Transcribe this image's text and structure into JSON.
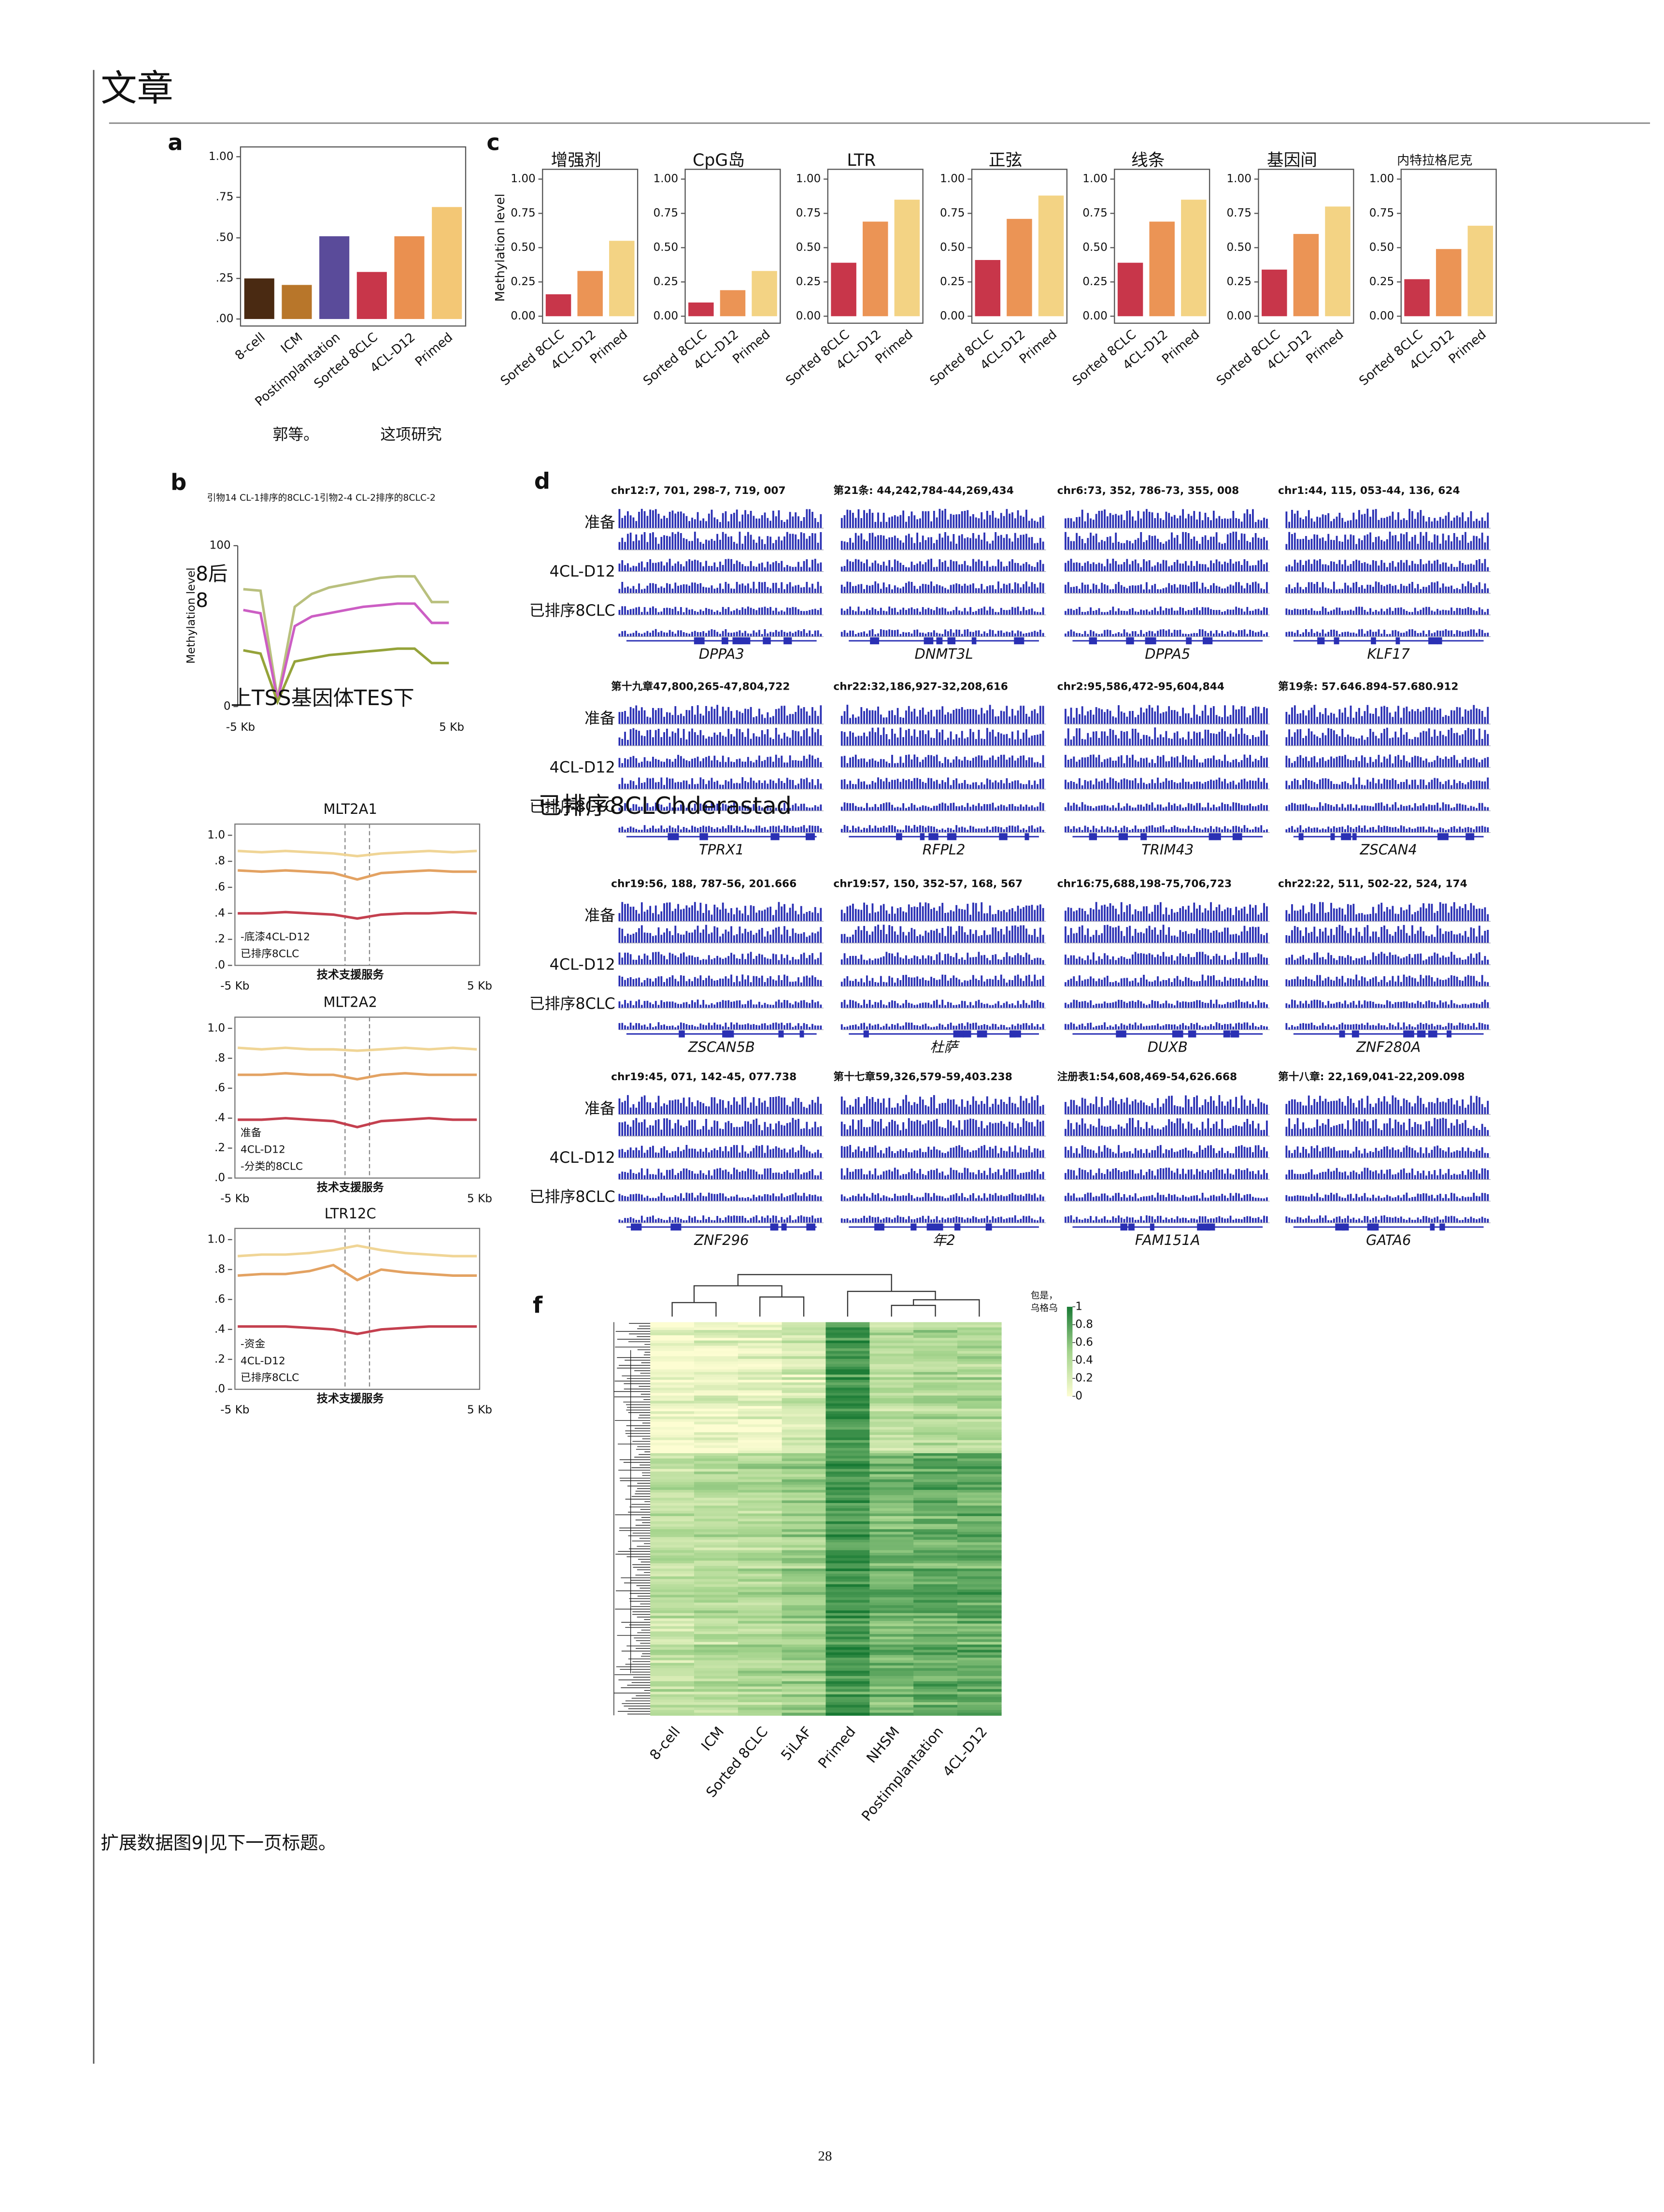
{
  "header": {
    "title": "文章"
  },
  "caption": "扩展数据图9|见下一页标题。",
  "page_number": "28",
  "chart_data": [
    {
      "type": "bar",
      "panel": "a",
      "categories": [
        "8-cell",
        "ICM",
        "Postimplantation",
        "Sorted 8CLC",
        "4CL-D12",
        "Primed"
      ],
      "values": [
        0.25,
        0.21,
        0.51,
        0.29,
        0.51,
        0.69
      ],
      "colors": [
        "#4a2a12",
        "#b8762a",
        "#5a4b9a",
        "#c8364a",
        "#ea9050",
        "#f3c775"
      ],
      "ylim": [
        0,
        1
      ],
      "yticks": [
        {
          "value": 0,
          "label": ".00"
        },
        {
          "value": 0.25,
          "label": ".25"
        },
        {
          "value": 0.5,
          "label": ".50"
        },
        {
          "value": 0.75,
          "label": ".75"
        },
        {
          "value": 1,
          "label": "1.00"
        }
      ],
      "notes": [
        "郭等。",
        "这项研究"
      ]
    },
    {
      "type": "bar",
      "panel": "c",
      "title": "增强剂",
      "ylabel": "Methylation level",
      "categories": [
        "Sorted 8CLC",
        "4CL-D12",
        "Primed"
      ],
      "values": [
        0.16,
        0.33,
        0.55
      ],
      "colors": [
        "#c8364a",
        "#eb9455",
        "#f3d384"
      ],
      "ylim": [
        0,
        1
      ],
      "yticks": [
        {
          "value": 0,
          "label": "0.00"
        },
        {
          "value": 0.25,
          "label": "0.25"
        },
        {
          "value": 0.5,
          "label": "0.50"
        },
        {
          "value": 0.75,
          "label": "0.75"
        },
        {
          "value": 1,
          "label": "1.00"
        }
      ]
    },
    {
      "type": "bar",
      "title": "CpG岛",
      "categories": [
        "Sorted 8CLC",
        "4CL-D12",
        "Primed"
      ],
      "values": [
        0.1,
        0.19,
        0.33
      ],
      "colors": [
        "#c8364a",
        "#eb9455",
        "#f3d384"
      ],
      "ylim": [
        0,
        1
      ],
      "yticks": [
        {
          "value": 0,
          "label": "0.00"
        },
        {
          "value": 0.25,
          "label": "0.25"
        },
        {
          "value": 0.5,
          "label": "0.50"
        },
        {
          "value": 0.75,
          "label": "0.75"
        },
        {
          "value": 1,
          "label": "1.00"
        }
      ]
    },
    {
      "type": "bar",
      "title": "LTR",
      "categories": [
        "Sorted 8CLC",
        "4CL-D12",
        "Primed"
      ],
      "values": [
        0.39,
        0.69,
        0.85
      ],
      "colors": [
        "#c8364a",
        "#eb9455",
        "#f3d384"
      ],
      "ylim": [
        0,
        1
      ],
      "yticks": [
        {
          "value": 0,
          "label": "0.00"
        },
        {
          "value": 0.25,
          "label": "0.25"
        },
        {
          "value": 0.5,
          "label": "0.50"
        },
        {
          "value": 0.75,
          "label": "0.75"
        },
        {
          "value": 1,
          "label": "1.00"
        }
      ]
    },
    {
      "type": "bar",
      "title": "正弦",
      "categories": [
        "Sorted 8CLC",
        "4CL-D12",
        "Primed"
      ],
      "values": [
        0.41,
        0.71,
        0.88
      ],
      "colors": [
        "#c8364a",
        "#eb9455",
        "#f3d384"
      ],
      "ylim": [
        0,
        1
      ],
      "yticks": [
        {
          "value": 0,
          "label": "0.00"
        },
        {
          "value": 0.25,
          "label": "0.25"
        },
        {
          "value": 0.5,
          "label": "0.50"
        },
        {
          "value": 0.75,
          "label": "0.75"
        },
        {
          "value": 1,
          "label": "1.00"
        }
      ]
    },
    {
      "type": "bar",
      "title": "线条",
      "categories": [
        "Sorted 8CLC",
        "4CL-D12",
        "Primed"
      ],
      "values": [
        0.39,
        0.69,
        0.85
      ],
      "colors": [
        "#c8364a",
        "#eb9455",
        "#f3d384"
      ],
      "ylim": [
        0,
        1
      ],
      "yticks": [
        {
          "value": 0,
          "label": "0.00"
        },
        {
          "value": 0.25,
          "label": "0.25"
        },
        {
          "value": 0.5,
          "label": "0.50"
        },
        {
          "value": 0.75,
          "label": "0.75"
        },
        {
          "value": 1,
          "label": "1.00"
        }
      ]
    },
    {
      "type": "bar",
      "title": "基因间",
      "categories": [
        "Sorted 8CLC",
        "4CL-D12",
        "Primed"
      ],
      "values": [
        0.34,
        0.6,
        0.8
      ],
      "colors": [
        "#c8364a",
        "#eb9455",
        "#f3d384"
      ],
      "ylim": [
        0,
        1
      ],
      "yticks": [
        {
          "value": 0,
          "label": "0.00"
        },
        {
          "value": 0.25,
          "label": "0.25"
        },
        {
          "value": 0.5,
          "label": "0.50"
        },
        {
          "value": 0.75,
          "label": "0.75"
        },
        {
          "value": 1,
          "label": "1.00"
        }
      ]
    },
    {
      "type": "bar",
      "title": "内特拉格尼克",
      "categories": [
        "Sorted 8CLC",
        "4CL-D12",
        "Primed"
      ],
      "values": [
        0.27,
        0.49,
        0.66
      ],
      "colors": [
        "#c8364a",
        "#eb9455",
        "#f3d384"
      ],
      "ylim": [
        0,
        1
      ],
      "yticks": [
        {
          "value": 0,
          "label": "0.00"
        },
        {
          "value": 0.25,
          "label": "0.25"
        },
        {
          "value": 0.5,
          "label": "0.50"
        },
        {
          "value": 0.75,
          "label": "0.75"
        },
        {
          "value": 1,
          "label": "1.00"
        }
      ]
    },
    {
      "type": "line",
      "panel": "b",
      "title": "引物14 CL-1排序的8CLC-1引物2-4 CL-2排序的8CLC-2",
      "ylabel": "Methylation level",
      "ylim": [
        0,
        100
      ],
      "yticks": [
        0,
        100
      ],
      "xtick_labels": [
        "-5 Kb",
        "5 Kb"
      ],
      "annotations": [
        "8后",
        "8",
        "上TSS基因体TES下"
      ],
      "series": [
        {
          "color": "#b9c07e",
          "values": [
            73,
            72,
            5,
            62,
            70,
            74,
            76,
            78,
            80,
            81,
            81,
            65,
            65
          ]
        },
        {
          "color": "#cc5ec4",
          "values": [
            60,
            58,
            4,
            50,
            56,
            58,
            60,
            62,
            63,
            64,
            64,
            52,
            52
          ]
        },
        {
          "color": "#95a33a",
          "values": [
            35,
            33,
            3,
            28,
            30,
            32,
            33,
            34,
            35,
            36,
            36,
            27,
            27
          ]
        }
      ]
    },
    {
      "type": "line",
      "title": "MLT2A1",
      "xlabel": "技术支援服务",
      "ylim": [
        0,
        1
      ],
      "yticks": [
        {
          "value": 0,
          "label": ".0"
        },
        {
          "value": 0.2,
          "label": ".2"
        },
        {
          "value": 0.4,
          "label": ".4"
        },
        {
          "value": 0.6,
          "label": ".6"
        },
        {
          "value": 0.8,
          "label": ".8"
        },
        {
          "value": 1,
          "label": "1.0"
        }
      ],
      "xtick_labels": [
        "-5 Kb",
        "5 Kb"
      ],
      "legend": [
        "-底漆4CL-D12",
        "已排序8CLC"
      ],
      "series": [
        {
          "color": "#f0d596",
          "values": [
            0.88,
            0.87,
            0.88,
            0.87,
            0.86,
            0.84,
            0.86,
            0.87,
            0.88,
            0.87,
            0.88
          ]
        },
        {
          "color": "#e3a262",
          "values": [
            0.73,
            0.72,
            0.73,
            0.72,
            0.71,
            0.66,
            0.71,
            0.72,
            0.73,
            0.72,
            0.72
          ]
        },
        {
          "color": "#c4404f",
          "values": [
            0.4,
            0.4,
            0.41,
            0.4,
            0.39,
            0.36,
            0.39,
            0.4,
            0.4,
            0.41,
            0.4
          ]
        }
      ]
    },
    {
      "type": "line",
      "title": "MLT2A2",
      "xlabel": "技术支援服务",
      "ylim": [
        0,
        1
      ],
      "yticks": [
        {
          "value": 0,
          "label": ".0"
        },
        {
          "value": 0.2,
          "label": ".2"
        },
        {
          "value": 0.4,
          "label": ".4"
        },
        {
          "value": 0.6,
          "label": ".6"
        },
        {
          "value": 0.8,
          "label": ".8"
        },
        {
          "value": 1,
          "label": "1.0"
        }
      ],
      "xtick_labels": [
        "-5 Kb",
        "5 Kb"
      ],
      "legend": [
        "准备",
        "4CL-D12",
        "-分类的8CLC"
      ],
      "series": [
        {
          "color": "#f0d596",
          "values": [
            0.87,
            0.86,
            0.87,
            0.86,
            0.86,
            0.85,
            0.86,
            0.87,
            0.86,
            0.87,
            0.86
          ]
        },
        {
          "color": "#e3a262",
          "values": [
            0.69,
            0.69,
            0.7,
            0.69,
            0.69,
            0.66,
            0.69,
            0.7,
            0.69,
            0.69,
            0.69
          ]
        },
        {
          "color": "#c4404f",
          "values": [
            0.39,
            0.39,
            0.4,
            0.39,
            0.38,
            0.34,
            0.38,
            0.39,
            0.4,
            0.39,
            0.39
          ]
        }
      ]
    },
    {
      "type": "line",
      "title": "LTR12C",
      "xlabel": "技术支援服务",
      "ylim": [
        0,
        1
      ],
      "yticks": [
        {
          "value": 0,
          "label": ".0"
        },
        {
          "value": 0.2,
          "label": ".2"
        },
        {
          "value": 0.4,
          "label": ".4"
        },
        {
          "value": 0.6,
          "label": ".6"
        },
        {
          "value": 0.8,
          "label": ".8"
        },
        {
          "value": 1,
          "label": "1.0"
        }
      ],
      "xtick_labels": [
        "-5 Kb",
        "5 Kb"
      ],
      "legend": [
        "-资金",
        "4CL-D12",
        "已排序8CLC"
      ],
      "series": [
        {
          "color": "#f0d596",
          "values": [
            0.89,
            0.9,
            0.9,
            0.91,
            0.93,
            0.96,
            0.93,
            0.91,
            0.9,
            0.89,
            0.89
          ]
        },
        {
          "color": "#e3a262",
          "values": [
            0.76,
            0.77,
            0.77,
            0.79,
            0.83,
            0.73,
            0.8,
            0.78,
            0.77,
            0.76,
            0.76
          ]
        },
        {
          "color": "#c4404f",
          "values": [
            0.42,
            0.42,
            0.42,
            0.41,
            0.4,
            0.37,
            0.4,
            0.41,
            0.42,
            0.42,
            0.42
          ]
        }
      ]
    },
    {
      "type": "tracks",
      "panel": "d",
      "row_labels": [
        "准备",
        "4CL-D12",
        "已排序8CLC"
      ],
      "annotation": "已排序8CLChderastad",
      "gene_colors": [
        "#5a4fcf",
        "#d0404f",
        "#d0404f",
        "#d0404f"
      ],
      "loci": [
        [
          {
            "coord": "chr12:7, 701, 298-7, 719, 007",
            "gene": "DPPA3"
          },
          {
            "coord": "第21条: 44,242,784-44,269,434",
            "gene": "DNMT3L"
          },
          {
            "coord": "chr6:73, 352, 786-73, 355, 008",
            "gene": "DPPA5"
          },
          {
            "coord": "chr1:44, 115, 053-44, 136, 624",
            "gene": "KLF17"
          }
        ],
        [
          {
            "coord": "第十九章47,800,265-47,804,722",
            "gene": "TPRX1"
          },
          {
            "coord": "chr22:32,186,927-32,208,616",
            "gene": "RFPL2"
          },
          {
            "coord": "chr2:95,586,472-95,604,844",
            "gene": "TRIM43"
          },
          {
            "coord": "第19条: 57.646.894-57.680.912",
            "gene": "ZSCAN4"
          }
        ],
        [
          {
            "coord": "chr19:56, 188, 787-56, 201.666",
            "gene": "ZSCAN5B"
          },
          {
            "coord": "chr19:57, 150, 352-57, 168, 567",
            "gene": "杜萨"
          },
          {
            "coord": "chr16:75,688,198-75,706,723",
            "gene": "DUXB"
          },
          {
            "coord": "chr22:22, 511, 502-22, 524, 174",
            "gene": "ZNF280A"
          }
        ],
        [
          {
            "coord": "chr19:45, 071, 142-45, 077.738",
            "gene": "ZNF296"
          },
          {
            "coord": "第十七章59,326,579-59,403.238",
            "gene": "年2"
          },
          {
            "coord": "注册表1:54,608,469-54,626.668",
            "gene": "FAM151A"
          },
          {
            "coord": "第十八章: 22,169,041-22,209.098",
            "gene": "GATA6"
          }
        ]
      ]
    },
    {
      "type": "heatmap",
      "panel": "f",
      "columns": [
        "8-cell",
        "ICM",
        "Sorted 8CLC",
        "5iLAF",
        "Primed",
        "NHSM",
        "Postimplantation",
        "4CL-D12"
      ],
      "colorbar_title": [
        "包是，",
        "乌格乌"
      ],
      "colorbar_ticks": [
        0,
        0.2,
        0.4,
        0.6,
        0.8,
        1
      ],
      "colors": [
        "#fdfdd2",
        "#a3d38c",
        "#197a34"
      ]
    }
  ]
}
